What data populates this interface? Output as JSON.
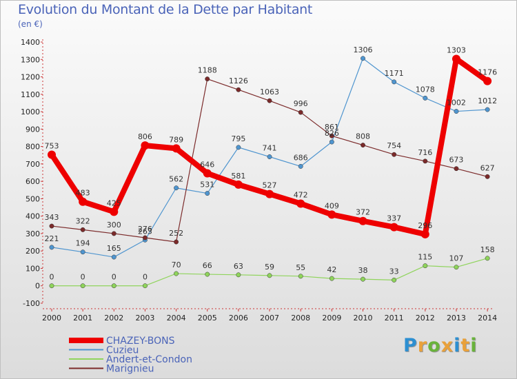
{
  "title": "Evolution du Montant de la Dette par Habitant",
  "subtitle": "(en €)",
  "logo": [
    "P",
    "r",
    "o",
    "x",
    "i",
    "t",
    "i"
  ],
  "logo_colors": [
    "#2d8fd1",
    "#e9a13b",
    "#69b33b",
    "#e9a13b",
    "#2d8fd1",
    "#e9a13b",
    "#69b33b"
  ],
  "chart_data": {
    "type": "line",
    "title": "Evolution du Montant de la Dette par Habitant",
    "subtitle": "(en €)",
    "xlabel": "",
    "ylabel": "",
    "x": [
      "2000",
      "2001",
      "2002",
      "2003",
      "2004",
      "2005",
      "2006",
      "2007",
      "2008",
      "2009",
      "2010",
      "2011",
      "2012",
      "2013",
      "2014"
    ],
    "ylim": [
      -100,
      1400
    ],
    "yticks": [
      -100,
      0,
      100,
      200,
      300,
      400,
      500,
      600,
      700,
      800,
      900,
      1000,
      1100,
      1200,
      1300,
      1400
    ],
    "grid": false,
    "legend_position": "bottom-left",
    "series": [
      {
        "name": "CHAZEY-BONS",
        "color": "#ee0000",
        "values": [
          753,
          483,
          425,
          806,
          789,
          646,
          581,
          527,
          472,
          409,
          372,
          337,
          296,
          1303,
          1176
        ]
      },
      {
        "name": "Cuzieu",
        "color": "#4f95cf",
        "values": [
          221,
          194,
          165,
          263,
          562,
          531,
          795,
          741,
          686,
          826,
          1306,
          1171,
          1078,
          1002,
          1012
        ]
      },
      {
        "name": "Andert-et-Condon",
        "color": "#8fd45b",
        "values": [
          0,
          0,
          0,
          0,
          70,
          66,
          63,
          59,
          55,
          42,
          38,
          33,
          115,
          107,
          158
        ]
      },
      {
        "name": "Marignieu",
        "color": "#7b2a2a",
        "values": [
          343,
          322,
          300,
          276,
          252,
          1188,
          1126,
          1063,
          996,
          861,
          808,
          754,
          716,
          673,
          627
        ]
      }
    ]
  }
}
